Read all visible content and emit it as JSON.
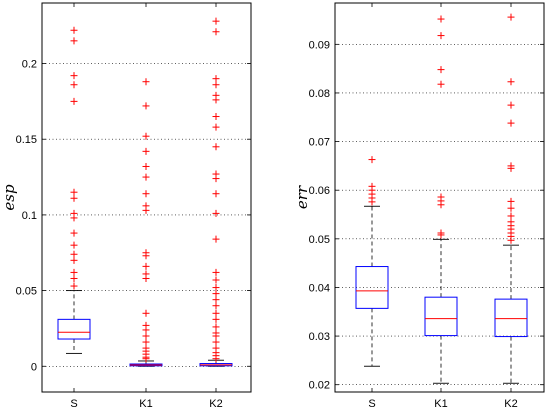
{
  "chart_data": [
    {
      "type": "box",
      "ylabel": "esp",
      "ylim": [
        -0.017,
        0.24
      ],
      "yticks": [
        0,
        0.05,
        0.1,
        0.15,
        0.2
      ],
      "ytick_labels": [
        "0",
        "0.05",
        "0.1",
        "0.15",
        "0.2"
      ],
      "grid": "y-dotted",
      "categories": [
        "S",
        "K1",
        "K2"
      ],
      "boxes": [
        {
          "name": "S",
          "whisker_low": 0.0085,
          "q1": 0.018,
          "median": 0.0225,
          "q3": 0.031,
          "whisker_high": 0.05,
          "outliers": [
            0.222,
            0.215,
            0.192,
            0.186,
            0.175,
            0.115,
            0.111,
            0.101,
            0.098,
            0.088,
            0.08,
            0.074,
            0.07,
            0.062,
            0.058,
            0.053
          ]
        },
        {
          "name": "K1",
          "whisker_low": 0.0,
          "q1": 0.0003,
          "median": 0.0008,
          "q3": 0.0015,
          "whisker_high": 0.0035,
          "outliers": [
            0.188,
            0.172,
            0.152,
            0.142,
            0.132,
            0.125,
            0.114,
            0.106,
            0.103,
            0.075,
            0.073,
            0.066,
            0.061,
            0.058,
            0.035,
            0.027,
            0.024,
            0.02,
            0.016,
            0.012,
            0.01,
            0.008,
            0.006,
            0.005
          ]
        },
        {
          "name": "K2",
          "whisker_low": 0.0,
          "q1": 0.0003,
          "median": 0.0009,
          "q3": 0.0018,
          "whisker_high": 0.004,
          "outliers": [
            0.228,
            0.221,
            0.19,
            0.186,
            0.179,
            0.176,
            0.165,
            0.158,
            0.145,
            0.127,
            0.124,
            0.114,
            0.101,
            0.084,
            0.062,
            0.057,
            0.052,
            0.048,
            0.044,
            0.04,
            0.035,
            0.031,
            0.026,
            0.022,
            0.02,
            0.016,
            0.012,
            0.009,
            0.007,
            0.005
          ]
        }
      ]
    },
    {
      "type": "box",
      "ylabel": "err",
      "ylim": [
        0.0185,
        0.0985
      ],
      "yticks": [
        0.02,
        0.03,
        0.04,
        0.05,
        0.06,
        0.07,
        0.08,
        0.09
      ],
      "ytick_labels": [
        "0.02",
        "0.03",
        "0.04",
        "0.05",
        "0.06",
        "0.07",
        "0.08",
        "0.09"
      ],
      "grid": "y-dotted",
      "categories": [
        "S",
        "K1",
        "K2"
      ],
      "boxes": [
        {
          "name": "S",
          "whisker_low": 0.0238,
          "q1": 0.0357,
          "median": 0.0393,
          "q3": 0.0443,
          "whisker_high": 0.0567,
          "outliers": [
            0.0663,
            0.0608,
            0.06,
            0.0592,
            0.0584,
            0.0576
          ]
        },
        {
          "name": "K1",
          "whisker_low": 0.0203,
          "q1": 0.0301,
          "median": 0.0336,
          "q3": 0.038,
          "whisker_high": 0.0499,
          "outliers": [
            0.0952,
            0.0918,
            0.0848,
            0.0818,
            0.0586,
            0.0578,
            0.057,
            0.0512,
            0.0508
          ]
        },
        {
          "name": "K2",
          "whisker_low": 0.0203,
          "q1": 0.0299,
          "median": 0.0336,
          "q3": 0.0376,
          "whisker_high": 0.0487,
          "outliers": [
            0.0956,
            0.0823,
            0.0775,
            0.0738,
            0.065,
            0.0645,
            0.0577,
            0.0563,
            0.0547,
            0.0535,
            0.0527,
            0.052,
            0.0512,
            0.0505,
            0.0497
          ]
        }
      ]
    }
  ],
  "colors": {
    "box": "#0000ff",
    "median": "#ff0000",
    "outlier": "#ff0000",
    "whisker": "#000000",
    "grid": "#000000"
  },
  "markers": {
    "outlier": "+"
  }
}
